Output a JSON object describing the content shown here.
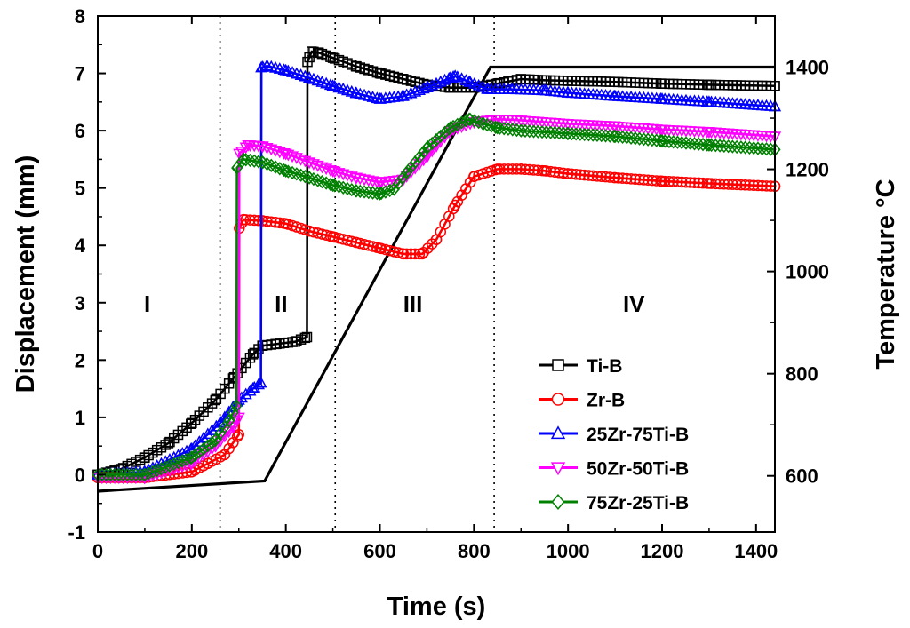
{
  "chart_data": {
    "type": "line",
    "title": "",
    "xlabel": "Time (s)",
    "ylabel": "Displacement (mm)",
    "y2label": "Temperature °C",
    "xlim": [
      0,
      1440
    ],
    "ylim": [
      -1,
      8
    ],
    "y2lim": [
      490,
      1500
    ],
    "xticks": [
      "0",
      "200",
      "400",
      "600",
      "800",
      "1000",
      "1200",
      "1400"
    ],
    "yticks": [
      "-1",
      "0",
      "1",
      "2",
      "3",
      "4",
      "5",
      "6",
      "7",
      "8"
    ],
    "y2ticks": [
      "600",
      "800",
      "1000",
      "1200",
      "1400"
    ],
    "region_boundaries": [
      260,
      505,
      843
    ],
    "regions": [
      {
        "label": "I",
        "x": 105
      },
      {
        "label": "II",
        "x": 390
      },
      {
        "label": "III",
        "x": 670
      },
      {
        "label": "IV",
        "x": 1140
      }
    ],
    "legend_position": "bottom-right",
    "temperature": {
      "name": "Temperature",
      "color": "#000000",
      "x": [
        0,
        355,
        835,
        1440
      ],
      "y": [
        570,
        590,
        1400,
        1400
      ]
    },
    "series": [
      {
        "name": "Ti-B",
        "color": "#000000",
        "marker": "square",
        "x": [
          0,
          50,
          100,
          150,
          200,
          250,
          290,
          330,
          350,
          380,
          420,
          445,
          446,
          455,
          470,
          500,
          550,
          600,
          650,
          700,
          750,
          800,
          850,
          900,
          950,
          1000,
          1100,
          1200,
          1300,
          1440
        ],
        "y": [
          0.0,
          0.1,
          0.3,
          0.55,
          0.9,
          1.3,
          1.7,
          2.1,
          2.25,
          2.28,
          2.32,
          2.4,
          7.2,
          7.38,
          7.36,
          7.27,
          7.12,
          7.0,
          6.9,
          6.8,
          6.75,
          6.75,
          6.82,
          6.9,
          6.88,
          6.87,
          6.85,
          6.82,
          6.8,
          6.78
        ]
      },
      {
        "name": "Zr-B",
        "color": "#ff0000",
        "marker": "circle",
        "x": [
          0,
          100,
          200,
          270,
          300,
          301,
          310,
          350,
          400,
          450,
          500,
          550,
          600,
          650,
          690,
          720,
          760,
          800,
          850,
          900,
          950,
          1000,
          1100,
          1200,
          1300,
          1440
        ],
        "y": [
          -0.05,
          -0.05,
          0.05,
          0.35,
          0.7,
          4.3,
          4.45,
          4.43,
          4.38,
          4.25,
          4.15,
          4.05,
          3.95,
          3.85,
          3.85,
          4.1,
          4.7,
          5.2,
          5.33,
          5.33,
          5.3,
          5.25,
          5.18,
          5.12,
          5.08,
          5.03
        ]
      },
      {
        "name": "25Zr-75Ti-B",
        "color": "#0000ff",
        "marker": "triangle-up",
        "x": [
          0,
          100,
          200,
          260,
          300,
          330,
          347,
          348,
          360,
          400,
          450,
          500,
          550,
          600,
          650,
          700,
          750,
          760,
          790,
          830,
          880,
          950,
          1000,
          1100,
          1200,
          1300,
          1440
        ],
        "y": [
          0.0,
          0.05,
          0.45,
          0.9,
          1.3,
          1.5,
          1.6,
          7.1,
          7.13,
          7.05,
          6.92,
          6.78,
          6.65,
          6.55,
          6.6,
          6.75,
          6.92,
          6.95,
          6.85,
          6.72,
          6.72,
          6.7,
          6.66,
          6.6,
          6.55,
          6.5,
          6.42
        ]
      },
      {
        "name": "50Zr-50Ti-B",
        "color": "#ff00ff",
        "marker": "triangle-down",
        "x": [
          0,
          100,
          200,
          250,
          290,
          300,
          301,
          320,
          350,
          400,
          450,
          500,
          550,
          600,
          650,
          700,
          750,
          800,
          850,
          900,
          1000,
          1100,
          1200,
          1300,
          1440
        ],
        "y": [
          -0.05,
          -0.05,
          0.2,
          0.5,
          0.85,
          1.0,
          5.6,
          5.75,
          5.73,
          5.6,
          5.45,
          5.3,
          5.18,
          5.1,
          5.15,
          5.55,
          6.0,
          6.15,
          6.2,
          6.18,
          6.12,
          6.08,
          6.02,
          5.98,
          5.9
        ]
      },
      {
        "name": "75Zr-25Ti-B",
        "color": "#008000",
        "marker": "diamond",
        "x": [
          0,
          100,
          200,
          250,
          280,
          295,
          296,
          310,
          350,
          400,
          450,
          500,
          550,
          600,
          630,
          660,
          700,
          750,
          790,
          820,
          850,
          900,
          1000,
          1100,
          1200,
          1300,
          1440
        ],
        "y": [
          0.0,
          0.0,
          0.3,
          0.6,
          0.95,
          1.2,
          5.35,
          5.5,
          5.45,
          5.3,
          5.18,
          5.05,
          4.95,
          4.9,
          4.98,
          5.3,
          5.7,
          6.05,
          6.2,
          6.12,
          6.05,
          6.0,
          5.95,
          5.9,
          5.82,
          5.75,
          5.67
        ]
      }
    ]
  }
}
